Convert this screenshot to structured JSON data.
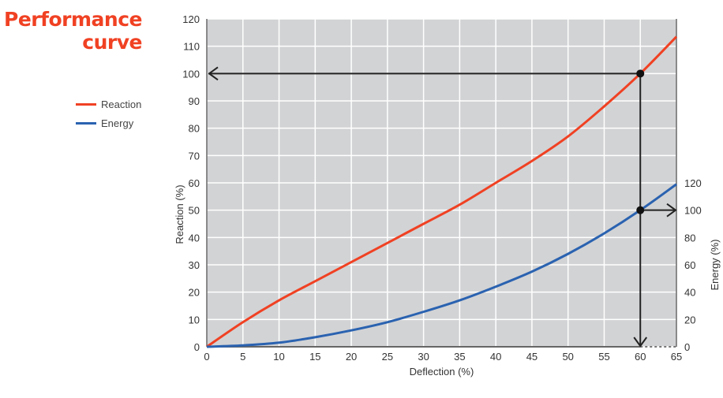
{
  "chart_data": {
    "type": "line",
    "title": "Performance curve",
    "xlabel": "Deflection (%)",
    "ylabel": "Reaction (%)",
    "y2label": "Energy (%)",
    "xlim": [
      0,
      65
    ],
    "ylim": [
      0,
      120
    ],
    "y2lim": [
      0,
      240
    ],
    "xticks": [
      0,
      5,
      10,
      15,
      20,
      25,
      30,
      35,
      40,
      45,
      50,
      55,
      60,
      65
    ],
    "yticks": [
      0,
      10,
      20,
      30,
      40,
      50,
      60,
      70,
      80,
      90,
      100,
      110,
      120
    ],
    "y2ticks": [
      0,
      20,
      40,
      60,
      80,
      100,
      120
    ],
    "grid": true,
    "legend_position": "left",
    "x": [
      0,
      5,
      10,
      15,
      20,
      25,
      30,
      35,
      40,
      45,
      50,
      55,
      60,
      65
    ],
    "series": [
      {
        "name": "Reaction",
        "axis": "left",
        "color": "#f04123",
        "values": [
          0,
          9,
          17,
          24,
          31,
          38,
          45,
          52,
          60,
          68,
          77,
          88,
          100,
          113.5
        ]
      },
      {
        "name": "Energy",
        "axis": "right",
        "color": "#2a62b0",
        "values": [
          0,
          1,
          3,
          7,
          12,
          18,
          25.6,
          34,
          44,
          55,
          68,
          83,
          100,
          119
        ]
      }
    ],
    "annotations": [
      {
        "type": "arrow",
        "from": [
          60,
          100
        ],
        "to_axis": "left",
        "value": 100
      },
      {
        "type": "arrow",
        "from": [
          60,
          100
        ],
        "to_axis": "bottom",
        "value": 60
      },
      {
        "type": "arrow",
        "from_energy": [
          60,
          100
        ],
        "to_axis": "right",
        "value": 100
      }
    ],
    "colors": {
      "plot_bg": "#d2d3d5",
      "grid": "#ffffff",
      "title": "#f04123"
    }
  }
}
